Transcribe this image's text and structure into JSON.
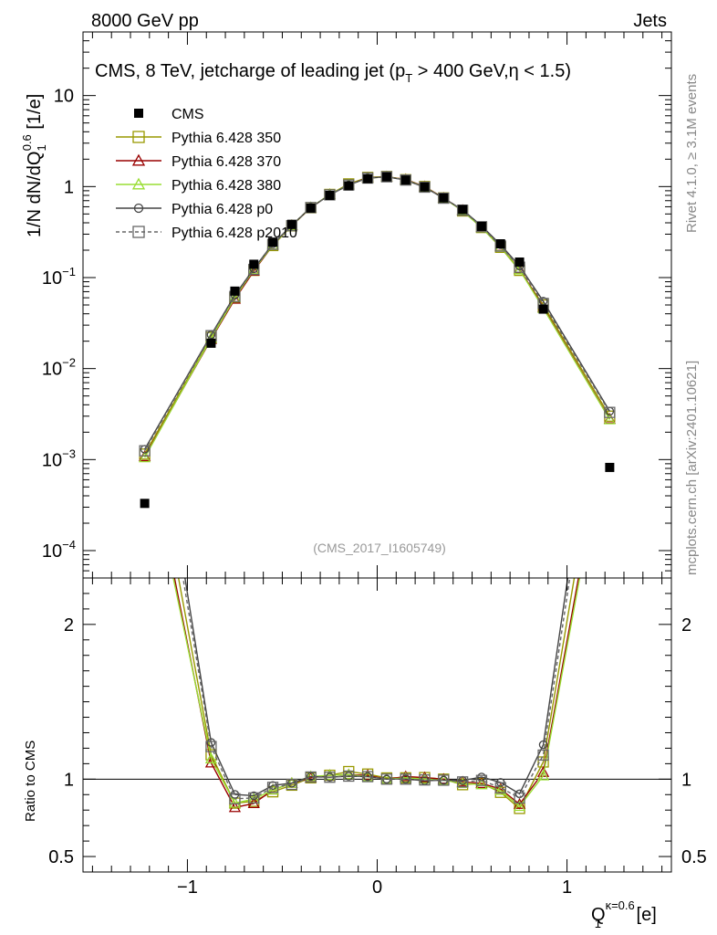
{
  "header": {
    "left": "8000 GeV pp",
    "right": "Jets"
  },
  "side_labels": {
    "top": "Rivet 4.1.0, ≥ 3.1M events",
    "bottom": "mcplots.cern.ch [arXiv:2401.10621]"
  },
  "chart_data": {
    "type": "line",
    "title": "CMS, 8 TeV, jetcharge of leading jet (p_T > 400 GeV, η < 1.5)",
    "title_parts": {
      "a": "CMS, 8 TeV, jetcharge of leading jet (p",
      "sub": "T",
      "b": " > 400 GeV,η < 1.5)"
    },
    "watermark": "(CMS_2017_I1605749)",
    "xlabel": "Q_1^{κ=0.6} [e]",
    "xlabel_parts": {
      "main": "Q",
      "sub": "1",
      "sup": "κ=0.6",
      "unit": " [e]"
    },
    "ylabel": "1/N dN/dQ_1^{0.6} [1/e]",
    "ylabel_parts": {
      "a": "1/N dN/dQ",
      "sub": "1",
      "sup": "0.6",
      "unit": " [1/e]"
    },
    "ratio_ylabel": "Ratio to CMS",
    "xlim": [
      -1.55,
      1.55
    ],
    "ylim_log": [
      5e-05,
      50
    ],
    "ratio_ylim": [
      0.4,
      2.3
    ],
    "x_ticks": [
      {
        "v": -1,
        "label": "−1"
      },
      {
        "v": 0,
        "label": "0"
      },
      {
        "v": 1,
        "label": "1"
      }
    ],
    "y_ticks": [
      {
        "exp": -4,
        "base": "10",
        "sup": "−4"
      },
      {
        "exp": -3,
        "base": "10",
        "sup": "−3"
      },
      {
        "exp": -2,
        "base": "10",
        "sup": "−2"
      },
      {
        "exp": -1,
        "base": "10",
        "sup": "−1"
      },
      {
        "exp": 0,
        "base": "1",
        "sup": ""
      },
      {
        "exp": 1,
        "base": "10",
        "sup": ""
      }
    ],
    "ratio_ticks": [
      {
        "v": 0.5,
        "label": "0.5"
      },
      {
        "v": 1,
        "label": "1"
      },
      {
        "v": 2,
        "label": "2"
      }
    ],
    "x": [
      -1.225,
      -0.875,
      -0.75,
      -0.65,
      -0.55,
      -0.45,
      -0.35,
      -0.25,
      -0.15,
      -0.05,
      0.05,
      0.15,
      0.25,
      0.35,
      0.45,
      0.55,
      0.65,
      0.75,
      0.875,
      1.225
    ],
    "data_series": {
      "name": "CMS",
      "color": "#000000",
      "values": [
        0.00033,
        0.019,
        0.071,
        0.14,
        0.245,
        0.385,
        0.58,
        0.8,
        1.02,
        1.22,
        1.28,
        1.18,
        0.99,
        0.75,
        0.56,
        0.365,
        0.235,
        0.148,
        0.045,
        0.00082
      ]
    },
    "series": [
      {
        "name": "Pythia 6.428 350",
        "color": "#999900",
        "marker": "square-open",
        "dash": "",
        "values": [
          0.00115,
          0.022,
          0.06,
          0.12,
          0.225,
          0.37,
          0.585,
          0.82,
          1.07,
          1.26,
          1.29,
          1.19,
          1.0,
          0.75,
          0.54,
          0.355,
          0.215,
          0.12,
          0.05,
          0.003
        ]
      },
      {
        "name": "Pythia 6.428 370",
        "color": "#990000",
        "marker": "triangle-open",
        "dash": "",
        "values": [
          0.00108,
          0.021,
          0.058,
          0.118,
          0.228,
          0.375,
          0.585,
          0.82,
          1.05,
          1.25,
          1.28,
          1.2,
          1.0,
          0.75,
          0.55,
          0.355,
          0.22,
          0.124,
          0.047,
          0.0028
        ]
      },
      {
        "name": "Pythia 6.428 380",
        "color": "#99dd33",
        "marker": "triangle-open",
        "dash": "",
        "values": [
          0.00105,
          0.0215,
          0.06,
          0.122,
          0.228,
          0.375,
          0.59,
          0.82,
          1.05,
          1.24,
          1.28,
          1.19,
          0.99,
          0.745,
          0.545,
          0.352,
          0.218,
          0.122,
          0.046,
          0.00275
        ]
      },
      {
        "name": "Pythia 6.428 p0",
        "color": "#444444",
        "marker": "circle-open",
        "dash": "",
        "values": [
          0.0013,
          0.0235,
          0.064,
          0.125,
          0.235,
          0.375,
          0.59,
          0.81,
          1.04,
          1.24,
          1.28,
          1.18,
          0.98,
          0.745,
          0.555,
          0.37,
          0.23,
          0.134,
          0.055,
          0.0034
        ]
      },
      {
        "name": "Pythia 6.428 p2010",
        "color": "#666666",
        "marker": "square-open",
        "dash": "4,3",
        "values": [
          0.00125,
          0.023,
          0.062,
          0.123,
          0.232,
          0.372,
          0.588,
          0.81,
          1.04,
          1.24,
          1.28,
          1.18,
          0.985,
          0.745,
          0.55,
          0.362,
          0.222,
          0.13,
          0.052,
          0.0033
        ]
      }
    ]
  }
}
